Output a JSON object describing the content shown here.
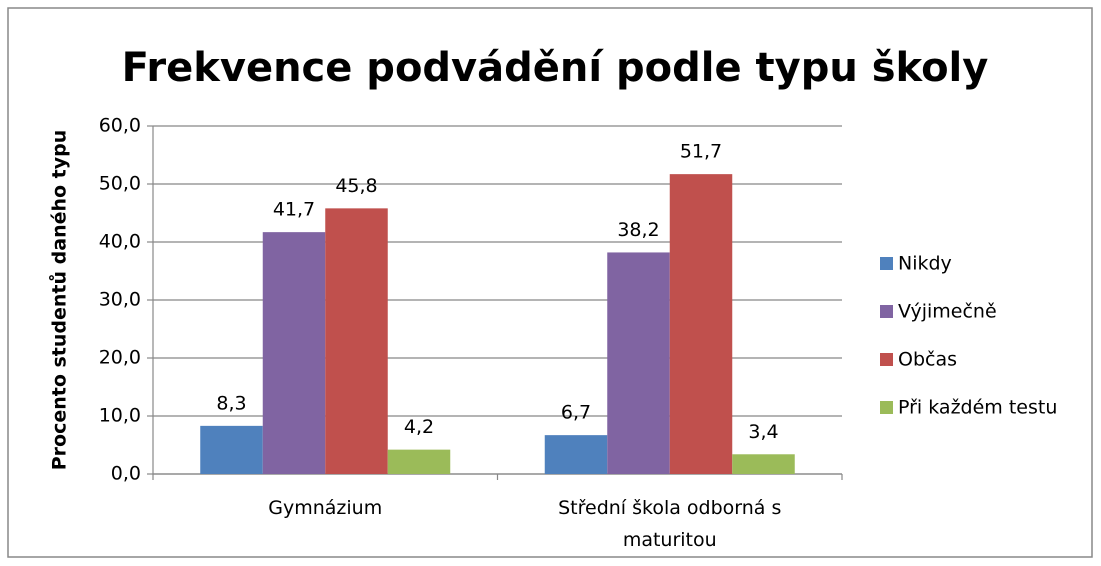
{
  "chart_data": {
    "type": "bar",
    "title": "Frekvence podvádění podle typu školy",
    "y_axis_label": "Procento studentů daného typu",
    "categories": [
      "Gymnázium",
      "Střední škola odborná s maturitou"
    ],
    "series": [
      {
        "name": "Nikdy",
        "color": "#4f81bd",
        "values": [
          8.3,
          6.7
        ],
        "value_labels": [
          "8,3",
          "6,7"
        ]
      },
      {
        "name": "Výjimečně",
        "color": "#8064a2",
        "values": [
          41.7,
          38.2
        ],
        "value_labels": [
          "41,7",
          "38,2"
        ]
      },
      {
        "name": "Občas",
        "color": "#c0504d",
        "values": [
          45.8,
          51.7
        ],
        "value_labels": [
          "45,8",
          "51,7"
        ]
      },
      {
        "name": "Při každém testu",
        "color": "#9bbb59",
        "values": [
          4.2,
          3.4
        ],
        "value_labels": [
          "4,2",
          "3,4"
        ]
      }
    ],
    "ylim": [
      0,
      60
    ],
    "yticks": [
      {
        "value": 0,
        "label": "0,0"
      },
      {
        "value": 10,
        "label": "10,0"
      },
      {
        "value": 20,
        "label": "20,0"
      },
      {
        "value": 30,
        "label": "30,0"
      },
      {
        "value": 40,
        "label": "40,0"
      },
      {
        "value": 50,
        "label": "50,0"
      },
      {
        "value": 60,
        "label": "60,0"
      }
    ],
    "grid": true,
    "legend": "right"
  }
}
